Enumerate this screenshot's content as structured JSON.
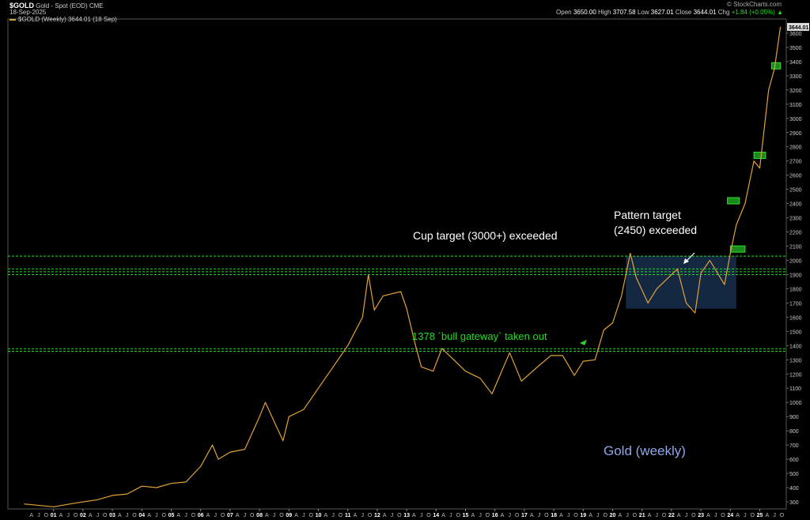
{
  "header": {
    "symbol": "$GOLD",
    "name": "Gold - Spot (EOD)",
    "exchange": "CME",
    "date": "18-Sep-2025",
    "series_legend": "$GOLD (Weekly) 3644.01 (18 Sep)",
    "logo": "© StockCharts.com",
    "ohlc": {
      "open_label": "Open",
      "open": "3650.00",
      "high_label": "High",
      "high": "3707.58",
      "low_label": "Low",
      "low": "3627.01",
      "close_label": "Close",
      "close": "3644.01",
      "chg_label": "Chg",
      "chg": "+1.84 (+0.05%)"
    },
    "last_price_tag": "3644.01"
  },
  "annotations": {
    "cup_target": "Cup target (3000+) exceeded",
    "pattern_target_line1": "Pattern target",
    "pattern_target_line2": "(2450) exceeded",
    "bull_gateway": "1378 `bull gateway` taken out",
    "title": "Gold (weekly)"
  },
  "colors": {
    "background": "#000000",
    "price_line": "#e0a23a",
    "support_lines": "#22dd22",
    "consolidation_box": "#1c3557",
    "title_text": "#8fa7e8"
  },
  "chart_data": {
    "type": "line",
    "title": "Gold (weekly)",
    "series": [
      {
        "name": "$GOLD (Weekly)",
        "x": [
          2000.0,
          2001.0,
          2001.7,
          2002.5,
          2003.0,
          2003.5,
          2004.0,
          2004.5,
          2005.0,
          2005.5,
          2006.0,
          2006.4,
          2006.6,
          2007.0,
          2007.5,
          2008.0,
          2008.2,
          2008.8,
          2009.0,
          2009.5,
          2010.0,
          2010.5,
          2011.0,
          2011.5,
          2011.7,
          2011.9,
          2012.2,
          2012.8,
          2013.0,
          2013.3,
          2013.5,
          2013.9,
          2014.2,
          2014.5,
          2015.0,
          2015.5,
          2015.9,
          2016.5,
          2016.9,
          2017.5,
          2017.9,
          2018.3,
          2018.7,
          2019.0,
          2019.4,
          2019.7,
          2020.0,
          2020.3,
          2020.6,
          2020.8,
          2021.2,
          2021.5,
          2022.2,
          2022.5,
          2022.8,
          2023.0,
          2023.3,
          2023.8,
          2024.0,
          2024.2,
          2024.5,
          2024.8,
          2025.0,
          2025.3,
          2025.5,
          2025.7
        ],
        "y": [
          285,
          265,
          290,
          315,
          345,
          355,
          410,
          400,
          430,
          440,
          550,
          700,
          600,
          650,
          670,
          900,
          1000,
          730,
          900,
          950,
          1100,
          1250,
          1400,
          1600,
          1900,
          1650,
          1750,
          1780,
          1660,
          1400,
          1250,
          1220,
          1380,
          1320,
          1220,
          1170,
          1060,
          1350,
          1150,
          1260,
          1330,
          1330,
          1190,
          1290,
          1300,
          1510,
          1560,
          1750,
          2050,
          1880,
          1700,
          1800,
          1940,
          1700,
          1630,
          1910,
          2000,
          1830,
          2050,
          2250,
          2400,
          2700,
          2650,
          3200,
          3350,
          3644
        ]
      }
    ],
    "ylabel": "",
    "xlabel": "",
    "ylim": [
      250,
      3700
    ],
    "xlim": [
      1999.45,
      2025.9
    ],
    "y_ticks": [
      300,
      400,
      500,
      600,
      700,
      800,
      900,
      1000,
      1100,
      1200,
      1300,
      1400,
      1500,
      1600,
      1700,
      1800,
      1900,
      2000,
      2100,
      2200,
      2300,
      2400,
      2500,
      2600,
      2700,
      2800,
      2900,
      3000,
      3100,
      3200,
      3300,
      3400,
      3500,
      3600
    ],
    "year_labels": [
      "01",
      "02",
      "03",
      "04",
      "05",
      "06",
      "07",
      "08",
      "09",
      "10",
      "11",
      "12",
      "13",
      "14",
      "15",
      "16",
      "17",
      "18",
      "19",
      "20",
      "21",
      "22",
      "23",
      "24",
      "25"
    ],
    "first_year": 2001,
    "month_letters": [
      "A",
      "J",
      "O"
    ],
    "horizontal_lines": [
      1360,
      1378,
      1900,
      1920,
      1940,
      2030
    ],
    "consolidation_box": {
      "x_start": 2020.45,
      "x_end": 2024.2,
      "y_low": 1660,
      "y_high": 2030
    },
    "breakout_markers": [
      {
        "x_start": 2024.0,
        "x_end": 2024.5,
        "y": 2080
      },
      {
        "x_start": 2023.9,
        "x_end": 2024.3,
        "y": 2420
      },
      {
        "x_start": 2024.8,
        "x_end": 2025.2,
        "y": 2740
      },
      {
        "x_start": 2025.4,
        "x_end": 2025.7,
        "y": 3370
      }
    ],
    "grid": false,
    "legend": "top-left"
  }
}
